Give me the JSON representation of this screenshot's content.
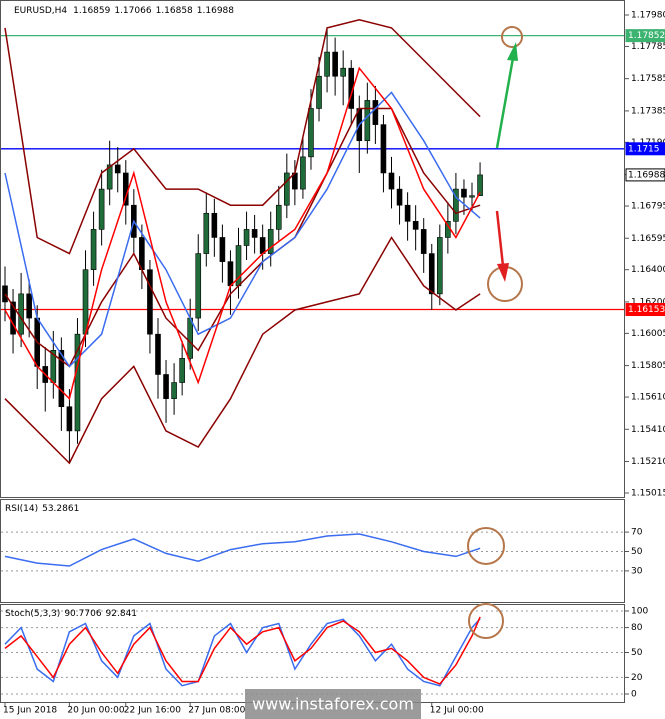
{
  "chart_data": [
    {
      "type": "candlestick",
      "title": "EURUSD,H4",
      "xlim": [
        0,
        77
      ],
      "xticks": [
        {
          "value": 0,
          "label": "15 Jun 2018"
        },
        {
          "value": 8,
          "label": "20 Jun 00:00"
        },
        {
          "value": 15,
          "label": "22 Jun 16:00"
        },
        {
          "value": 23,
          "label": "27 Jun 08:00"
        },
        {
          "value": 53,
          "label": "12 Jul 00:00"
        }
      ],
      "ylim": [
        1.1499,
        1.18073
      ],
      "yticks": [
        {
          "value": 1.1798,
          "label": "1.17980"
        },
        1.17785,
        1.17585,
        1.17385,
        {
          "value": 1.1719,
          "label": "1.17190"
        },
        {
          "value": 1.1699,
          "label": "1.16990"
        },
        1.16795,
        1.16595,
        {
          "value": 1.164,
          "label": "1.16400"
        },
        {
          "value": 1.162,
          "label": "1.16200"
        },
        1.16005,
        1.15805,
        {
          "value": 1.1561,
          "label": "1.15610"
        },
        {
          "value": 1.1541,
          "label": "1.15410"
        },
        {
          "value": 1.1521,
          "label": "1.15210"
        },
        1.15015
      ],
      "open": [
        1.163,
        1.162,
        1.16,
        1.1625,
        1.161,
        1.158,
        1.157,
        1.159,
        1.1555,
        1.154,
        1.16,
        1.164,
        1.1665,
        1.169,
        1.1705,
        1.17,
        1.168,
        1.166,
        1.164,
        1.16,
        1.1575,
        1.156,
        1.157,
        1.1585,
        1.161,
        1.165,
        1.1675,
        1.166,
        1.1645,
        1.163,
        1.1655,
        1.1665,
        1.166,
        1.165,
        1.1665,
        1.168,
        1.17,
        1.169,
        1.171,
        1.174,
        1.176,
        1.1775,
        1.176,
        1.1765,
        1.174,
        1.172,
        1.1745,
        1.173,
        1.17,
        1.169,
        1.168,
        1.167,
        1.1665,
        1.165,
        1.1625,
        1.166,
        1.167,
        1.169,
        1.1685,
        1.16859
      ],
      "high": [
        1.1642,
        1.1628,
        1.1638,
        1.1634,
        1.1618,
        1.1592,
        1.1602,
        1.1598,
        1.1566,
        1.161,
        1.1652,
        1.1676,
        1.1702,
        1.172,
        1.1716,
        1.1708,
        1.169,
        1.1668,
        1.1646,
        1.161,
        1.1584,
        1.1582,
        1.1596,
        1.1622,
        1.1662,
        1.1688,
        1.1684,
        1.1668,
        1.1652,
        1.1666,
        1.1676,
        1.1674,
        1.1668,
        1.1676,
        1.1692,
        1.1712,
        1.1708,
        1.1722,
        1.1752,
        1.1772,
        1.179,
        1.1784,
        1.1776,
        1.177,
        1.1748,
        1.1756,
        1.1754,
        1.1736,
        1.171,
        1.1698,
        1.1688,
        1.168,
        1.1672,
        1.1656,
        1.1668,
        1.1682,
        1.17,
        1.1696,
        1.1694,
        1.17066
      ],
      "low": [
        1.1608,
        1.1588,
        1.1592,
        1.1598,
        1.1566,
        1.1552,
        1.156,
        1.154,
        1.152,
        1.1532,
        1.1592,
        1.163,
        1.1655,
        1.168,
        1.1688,
        1.1668,
        1.165,
        1.1628,
        1.1588,
        1.156,
        1.1545,
        1.155,
        1.1562,
        1.1578,
        1.1602,
        1.1642,
        1.1648,
        1.1632,
        1.1612,
        1.1622,
        1.1646,
        1.165,
        1.164,
        1.1642,
        1.1658,
        1.1672,
        1.168,
        1.1684,
        1.1702,
        1.1732,
        1.175,
        1.1748,
        1.1742,
        1.173,
        1.17,
        1.1712,
        1.1718,
        1.1688,
        1.1678,
        1.1668,
        1.1658,
        1.1652,
        1.1638,
        1.1615,
        1.1618,
        1.165,
        1.1662,
        1.1674,
        1.1676,
        1.16858
      ],
      "close": [
        1.162,
        1.16,
        1.1625,
        1.161,
        1.158,
        1.157,
        1.159,
        1.1555,
        1.154,
        1.16,
        1.164,
        1.1665,
        1.169,
        1.1705,
        1.17,
        1.168,
        1.166,
        1.164,
        1.16,
        1.1575,
        1.156,
        1.157,
        1.1585,
        1.161,
        1.165,
        1.1675,
        1.166,
        1.1645,
        1.163,
        1.1655,
        1.1665,
        1.166,
        1.165,
        1.1665,
        1.168,
        1.17,
        1.169,
        1.171,
        1.174,
        1.176,
        1.1775,
        1.176,
        1.1765,
        1.174,
        1.172,
        1.1745,
        1.173,
        1.17,
        1.169,
        1.168,
        1.167,
        1.1665,
        1.165,
        1.1625,
        1.166,
        1.167,
        1.169,
        1.1685,
        1.16859,
        1.16988
      ],
      "bull_color": "#1f6b3a",
      "bear_color": "#000000",
      "series": [
        {
          "color": "#8b0000",
          "x": [
            0,
            4,
            8,
            12,
            16,
            20,
            24,
            28,
            32,
            36,
            40,
            44,
            48,
            52,
            56,
            59
          ],
          "values": [
            1.179,
            1.166,
            1.165,
            1.17,
            1.1715,
            1.169,
            1.169,
            1.168,
            1.168,
            1.17,
            1.179,
            1.1795,
            1.179,
            1.177,
            1.175,
            1.1735
          ]
        },
        {
          "color": "#8b0000",
          "x": [
            0,
            4,
            8,
            12,
            16,
            20,
            24,
            28,
            32,
            36,
            40,
            44,
            48,
            52,
            56,
            59
          ],
          "values": [
            1.156,
            1.154,
            1.152,
            1.156,
            1.158,
            1.154,
            1.153,
            1.156,
            1.16,
            1.1615,
            1.162,
            1.1625,
            1.166,
            1.163,
            1.1615,
            1.1625
          ]
        },
        {
          "color": "#8b0000",
          "x": [
            0,
            4,
            8,
            12,
            16,
            20,
            24,
            28,
            32,
            36,
            40,
            44,
            48,
            52,
            56,
            59
          ],
          "values": [
            1.1625,
            1.1595,
            1.158,
            1.162,
            1.165,
            1.161,
            1.159,
            1.1625,
            1.1645,
            1.166,
            1.17,
            1.174,
            1.174,
            1.17,
            1.1675,
            1.168
          ]
        },
        {
          "color": "#3a6cf0",
          "x": [
            0,
            4,
            8,
            12,
            16,
            20,
            24,
            28,
            32,
            36,
            40,
            44,
            48,
            52,
            56,
            59
          ],
          "values": [
            1.17,
            1.161,
            1.158,
            1.16,
            1.167,
            1.164,
            1.16,
            1.161,
            1.1645,
            1.166,
            1.169,
            1.173,
            1.175,
            1.172,
            1.1685,
            1.1672
          ]
        },
        {
          "color": "#ff0000",
          "x": [
            0,
            4,
            8,
            12,
            16,
            20,
            24,
            28,
            32,
            36,
            40,
            44,
            48,
            52,
            56,
            59
          ],
          "values": [
            1.1615,
            1.158,
            1.156,
            1.164,
            1.17,
            1.162,
            1.157,
            1.163,
            1.165,
            1.1665,
            1.17,
            1.1765,
            1.174,
            1.169,
            1.166,
            1.1688
          ]
        }
      ],
      "price_lines": [
        {
          "value": 1.17852,
          "color": "#3cb371"
        },
        {
          "value": 1.1715,
          "color": "#0000ff"
        },
        {
          "value": 1.16153,
          "color": "#ff0000"
        }
      ]
    },
    {
      "type": "line",
      "title": "RSI(14)",
      "ylim": [
        0,
        100
      ],
      "yticks": [
        70,
        50,
        30
      ],
      "x": [
        0,
        4,
        8,
        12,
        16,
        20,
        24,
        28,
        32,
        36,
        40,
        44,
        48,
        52,
        56,
        59
      ],
      "series": [
        {
          "color": "#3a6cf0",
          "values": [
            45,
            38,
            35,
            52,
            63,
            48,
            40,
            52,
            58,
            60,
            66,
            68,
            60,
            50,
            45,
            53.2861
          ]
        }
      ]
    },
    {
      "type": "line",
      "title": "Stoch(5,3,3)",
      "ylim": [
        0,
        100
      ],
      "yticks": [
        100,
        80,
        50,
        20,
        0
      ],
      "x": [
        0,
        2,
        4,
        6,
        8,
        10,
        12,
        14,
        16,
        18,
        20,
        22,
        24,
        26,
        28,
        30,
        32,
        34,
        36,
        38,
        40,
        42,
        44,
        46,
        48,
        50,
        52,
        54,
        56,
        58,
        59
      ],
      "series": [
        {
          "color": "#3a6cf0",
          "values": [
            60,
            80,
            30,
            15,
            75,
            85,
            40,
            20,
            70,
            85,
            30,
            10,
            15,
            70,
            85,
            50,
            80,
            85,
            30,
            60,
            85,
            90,
            70,
            40,
            60,
            30,
            15,
            10,
            45,
            80,
            90.7706
          ]
        },
        {
          "color": "#ff0000",
          "values": [
            55,
            70,
            45,
            20,
            60,
            80,
            50,
            25,
            60,
            80,
            40,
            15,
            15,
            55,
            80,
            60,
            75,
            80,
            40,
            55,
            80,
            88,
            75,
            50,
            55,
            40,
            20,
            12,
            35,
            70,
            92.841
          ]
        }
      ]
    }
  ],
  "watermark": "www.instaforex.com"
}
